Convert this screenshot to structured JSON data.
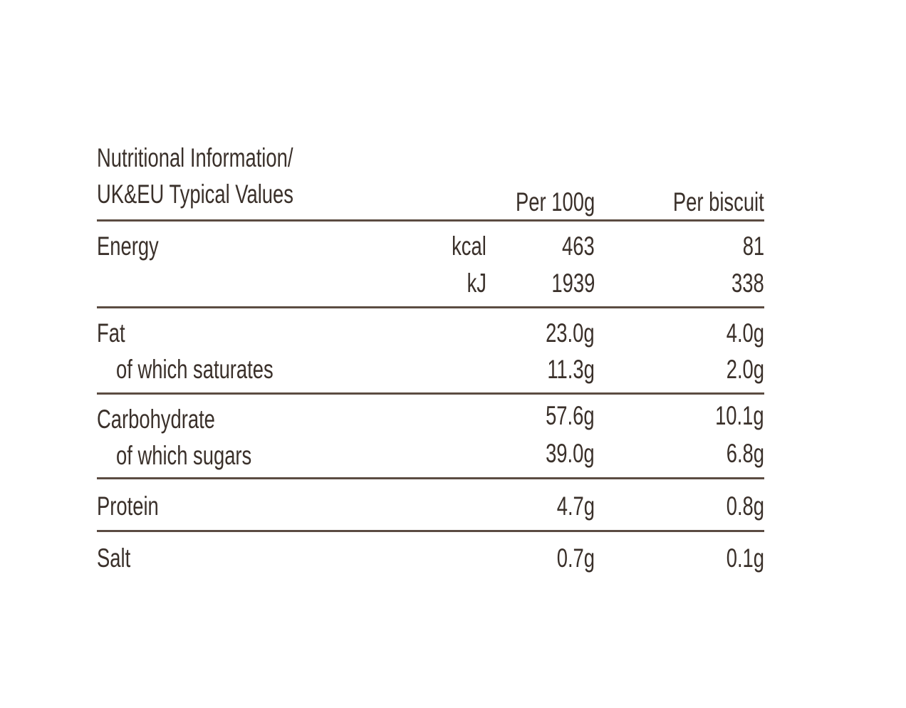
{
  "table": {
    "title_line1": "Nutritional Information/",
    "title_line2": "UK&EU Typical Values",
    "col_per100": "Per 100g",
    "col_perbiscuit": "Per biscuit",
    "rows": [
      {
        "label": "Energy",
        "unit": "kcal",
        "per100": "463",
        "perbiscuit": "81"
      },
      {
        "label": "",
        "unit": "kJ",
        "per100": "1939",
        "perbiscuit": "338"
      },
      {
        "label": "Fat",
        "unit": "",
        "per100": "23.0g",
        "perbiscuit": "4.0g"
      },
      {
        "label": "of which saturates",
        "unit": "",
        "per100": "11.3g",
        "perbiscuit": "2.0g"
      },
      {
        "label": "Carbohydrate",
        "unit": "",
        "per100": "57.6g",
        "perbiscuit": "10.1g"
      },
      {
        "label": "of which sugars",
        "unit": "",
        "per100": "39.0g",
        "perbiscuit": "6.8g"
      },
      {
        "label": "Protein",
        "unit": "",
        "per100": "4.7g",
        "perbiscuit": "0.8g"
      },
      {
        "label": "Salt",
        "unit": "",
        "per100": "0.7g",
        "perbiscuit": "0.1g"
      }
    ]
  },
  "colors": {
    "text": "#3a302a",
    "rule": "#5b4c42",
    "background": "#ffffff"
  }
}
